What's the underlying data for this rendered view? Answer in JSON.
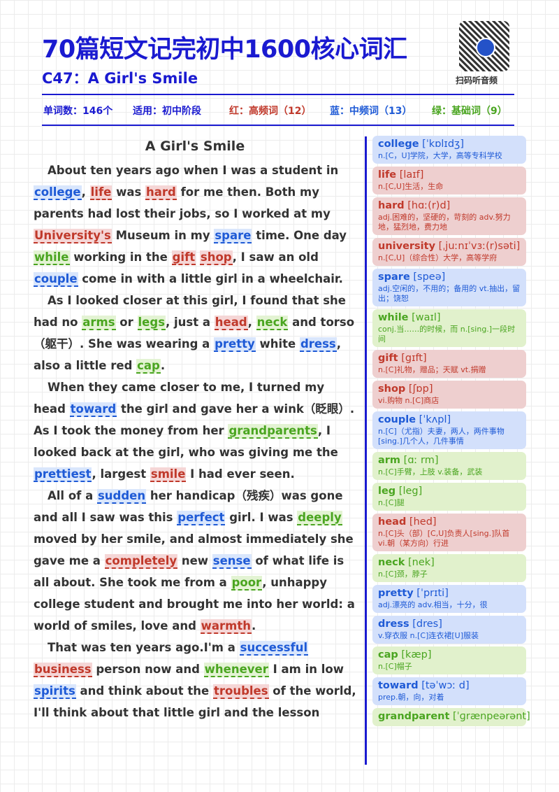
{
  "header": {
    "title": "70篇短文记完初中1600核心词汇",
    "subtitle": "C47：A Girl's Smile",
    "qr_label": "扫码听音频"
  },
  "stats": {
    "word_count": "单词数：146个",
    "level": "适用：初中阶段",
    "red": "红：高频词（12）",
    "blue": "蓝：中频词（13）",
    "green": "绿：基础词（9）"
  },
  "colors": {
    "title": "#1a1ad0",
    "red": "#c0392b",
    "blue": "#1e5ad6",
    "green": "#4aa520"
  },
  "passage": {
    "title": "A Girl's Smile",
    "paragraphs": [
      [
        {
          "t": "About ten years ago when I was a student in "
        },
        {
          "t": "college",
          "c": "blue"
        },
        {
          "t": ", "
        },
        {
          "t": "life",
          "c": "red"
        },
        {
          "t": " was "
        },
        {
          "t": "hard",
          "c": "red"
        },
        {
          "t": " for me then. Both my parents had lost their jobs, so I worked at my "
        },
        {
          "t": "University's",
          "c": "red"
        },
        {
          "t": " Museum in my "
        },
        {
          "t": "spare",
          "c": "blue"
        },
        {
          "t": " time. One day "
        },
        {
          "t": "while",
          "c": "green"
        },
        {
          "t": " working in the "
        },
        {
          "t": "gift",
          "c": "red"
        },
        {
          "t": " "
        },
        {
          "t": "shop",
          "c": "red"
        },
        {
          "t": ", I saw an old "
        },
        {
          "t": "couple",
          "c": "blue"
        },
        {
          "t": " come in with a little girl in a wheelchair."
        }
      ],
      [
        {
          "t": "As I looked closer at this girl, I found that she had no "
        },
        {
          "t": "arms",
          "c": "green"
        },
        {
          "t": " or "
        },
        {
          "t": "legs",
          "c": "green"
        },
        {
          "t": ", just a "
        },
        {
          "t": "head",
          "c": "red"
        },
        {
          "t": ", "
        },
        {
          "t": "neck",
          "c": "green"
        },
        {
          "t": " and torso （躯干）. She was wearing a "
        },
        {
          "t": "pretty",
          "c": "blue"
        },
        {
          "t": " white "
        },
        {
          "t": "dress",
          "c": "blue"
        },
        {
          "t": ", also a little red "
        },
        {
          "t": "cap",
          "c": "green"
        },
        {
          "t": "."
        }
      ],
      [
        {
          "t": "When they came closer to me, I turned my head "
        },
        {
          "t": "toward",
          "c": "blue"
        },
        {
          "t": " the girl and gave her a wink（眨眼）. As I took the money from her "
        },
        {
          "t": "grandparents",
          "c": "green"
        },
        {
          "t": ", I looked back at the girl, who was giving me the "
        },
        {
          "t": "prettiest",
          "c": "blue"
        },
        {
          "t": ", largest "
        },
        {
          "t": "smile",
          "c": "red"
        },
        {
          "t": " I had ever seen."
        }
      ],
      [
        {
          "t": "All of a "
        },
        {
          "t": "sudden",
          "c": "blue"
        },
        {
          "t": " her handicap（残疾）was gone and all I saw was this "
        },
        {
          "t": "perfect",
          "c": "blue"
        },
        {
          "t": " girl. I was "
        },
        {
          "t": "deeply",
          "c": "green"
        },
        {
          "t": " moved by her smile, and almost immediately she gave me a "
        },
        {
          "t": "completely",
          "c": "red"
        },
        {
          "t": " new "
        },
        {
          "t": "sense",
          "c": "blue"
        },
        {
          "t": " of what life is all about. She took me from a "
        },
        {
          "t": "poor",
          "c": "green"
        },
        {
          "t": ", unhappy college student and brought me into her world: a world of smiles, love and "
        },
        {
          "t": "warmth",
          "c": "red"
        },
        {
          "t": "."
        }
      ],
      [
        {
          "t": "That was ten years ago.I'm a "
        },
        {
          "t": "successful",
          "c": "blue"
        },
        {
          "t": " "
        },
        {
          "t": "business",
          "c": "red"
        },
        {
          "t": " person now and "
        },
        {
          "t": "whenever",
          "c": "green"
        },
        {
          "t": " I am in low "
        },
        {
          "t": "spirits",
          "c": "blue"
        },
        {
          "t": " and think about the "
        },
        {
          "t": "troubles",
          "c": "red"
        },
        {
          "t": " of the world, I'll think about that little girl and the lesson"
        }
      ]
    ]
  },
  "vocab": [
    {
      "word": "college",
      "ipa": "[ˈkɒlɪdʒ]",
      "def": "n.[C，U]学院，大学，高等专科学校",
      "color": "blue"
    },
    {
      "word": "life",
      "ipa": "[laɪf]",
      "def": "n.[C,U]生活，生命",
      "color": "red"
    },
    {
      "word": "hard",
      "ipa": "[hɑː(r)d]",
      "def": "adj.困难的，坚硬的，苛刻的 adv.努力地，猛烈地，费力地",
      "color": "red"
    },
    {
      "word": "university",
      "ipa": "[ˌjuːnɪˈvɜː(r)səti]",
      "def": "n.[C,U]（综合性）大学，高等学府",
      "color": "red"
    },
    {
      "word": "spare",
      "ipa": "[speə]",
      "def": "adj.空闲的，不用的；备用的 vt.抽出，留出；饶恕",
      "color": "blue"
    },
    {
      "word": "while",
      "ipa": "[waɪl]",
      "def": "conj.当……的时候，而 n.[sing.]一段时间",
      "color": "green"
    },
    {
      "word": "gift",
      "ipa": "[gɪft]",
      "def": "n.[C]礼物，赠品；天赋 vt.捐赠",
      "color": "red"
    },
    {
      "word": "shop",
      "ipa": "[ʃɒp]",
      "def": "vi.购物 n.[C]商店",
      "color": "red"
    },
    {
      "word": "couple",
      "ipa": "[ˈkʌpl]",
      "def": "n.[C]（尤指）夫妻，两人，两件事物[sing.]几个人，几件事情",
      "color": "blue"
    },
    {
      "word": "arm",
      "ipa": "[ɑː rm]",
      "def": "n.[C]手臂，上肢 v.装备，武装",
      "color": "green"
    },
    {
      "word": "leg",
      "ipa": "[leg]",
      "def": "n.[C]腿",
      "color": "green"
    },
    {
      "word": "head",
      "ipa": "[hed]",
      "def": "n.[C]头（部）[C,U]负责人[sing.]队首 vi.朝（某方向）行进",
      "color": "red"
    },
    {
      "word": "neck",
      "ipa": "[nek]",
      "def": "n.[C]颈，脖子",
      "color": "green"
    },
    {
      "word": "pretty",
      "ipa": "[ˈprɪti]",
      "def": "adj.漂亮的 adv.相当，十分，很",
      "color": "blue"
    },
    {
      "word": "dress",
      "ipa": "[dres]",
      "def": "v.穿衣服 n.[C]连衣裙[U]服装",
      "color": "blue"
    },
    {
      "word": "cap",
      "ipa": "[kæp]",
      "def": "n.[C]帽子",
      "color": "green"
    },
    {
      "word": "toward",
      "ipa": "[təˈwɔː d]",
      "def": "prep.朝，向，对着",
      "color": "blue"
    },
    {
      "word": "grandparent",
      "ipa": "[ˈɡrænpeərənt]",
      "def": "",
      "color": "green"
    }
  ]
}
